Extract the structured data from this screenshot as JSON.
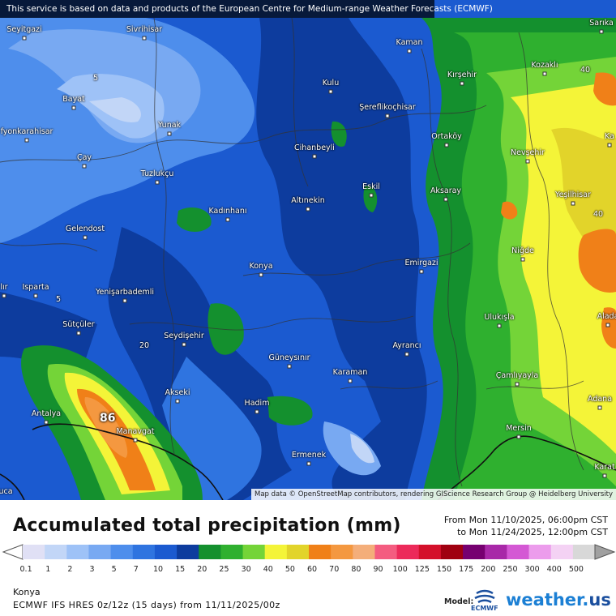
{
  "banner": "This service is based on data and products of the European Centre for Medium-range Weather Forecasts (ECMWF)",
  "attribution": "Map data © OpenStreetMap contributors, rendering GIScience Research Group @ Heidelberg University",
  "max_value_label": "86",
  "contour_labels": [
    "5",
    "5",
    "20",
    "40",
    "40"
  ],
  "cities": [
    {
      "name": "Seyitgazi"
    },
    {
      "name": "Sivrihisar"
    },
    {
      "name": "Kaman"
    },
    {
      "name": "Sarıka"
    },
    {
      "name": "Kozaklı"
    },
    {
      "name": "Kırşehir"
    },
    {
      "name": "Bayat"
    },
    {
      "name": "Kulu"
    },
    {
      "name": "Şereflikoçhisar"
    },
    {
      "name": "fyonkarahisar"
    },
    {
      "name": "Yunak"
    },
    {
      "name": "Ortaköy"
    },
    {
      "name": "Cihanbeyli"
    },
    {
      "name": "Nevşehir"
    },
    {
      "name": "Ka"
    },
    {
      "name": "Çay"
    },
    {
      "name": "Tuzlukçu"
    },
    {
      "name": "Eskil"
    },
    {
      "name": "Aksaray"
    },
    {
      "name": "Yeşilhisar"
    },
    {
      "name": "Altınekin"
    },
    {
      "name": "Kadınhanı"
    },
    {
      "name": "Gelendost"
    },
    {
      "name": "Niğde"
    },
    {
      "name": "Konya"
    },
    {
      "name": "Emirgazi"
    },
    {
      "name": "Isparta"
    },
    {
      "name": "lır"
    },
    {
      "name": "Yenişarbademli"
    },
    {
      "name": "Ulukışla"
    },
    {
      "name": "Alada"
    },
    {
      "name": "Sütçüler"
    },
    {
      "name": "Seydişehir"
    },
    {
      "name": "Ayrancı"
    },
    {
      "name": "Güneysınır"
    },
    {
      "name": "Karaman"
    },
    {
      "name": "Çamlıyayla"
    },
    {
      "name": "Akseki"
    },
    {
      "name": "Hadim"
    },
    {
      "name": "Adana"
    },
    {
      "name": "Antalya"
    },
    {
      "name": "Manavgat"
    },
    {
      "name": "Mersin"
    },
    {
      "name": "Ermenek"
    },
    {
      "name": "Karat"
    },
    {
      "name": "uca"
    }
  ],
  "legend": {
    "title": "Accumulated total precipitation (mm)",
    "period_from": "From Mon 11/10/2025, 06:00pm CST",
    "period_to": "to Mon 11/24/2025, 12:00pm CST",
    "bins": [
      {
        "label": "0.1",
        "color": "#e0e0f5"
      },
      {
        "label": "1",
        "color": "#c2d6f7"
      },
      {
        "label": "2",
        "color": "#9ec2f7"
      },
      {
        "label": "3",
        "color": "#78a9f2"
      },
      {
        "label": "5",
        "color": "#4e8eec"
      },
      {
        "label": "7",
        "color": "#2f74e0"
      },
      {
        "label": "10",
        "color": "#1b5ad0"
      },
      {
        "label": "15",
        "color": "#0d3c9e"
      },
      {
        "label": "20",
        "color": "#14902e"
      },
      {
        "label": "25",
        "color": "#2fb02f"
      },
      {
        "label": "30",
        "color": "#74d438"
      },
      {
        "label": "40",
        "color": "#f4f438"
      },
      {
        "label": "50",
        "color": "#e2d42a"
      },
      {
        "label": "60",
        "color": "#f08018"
      },
      {
        "label": "70",
        "color": "#f49840"
      },
      {
        "label": "80",
        "color": "#f4ae7a"
      },
      {
        "label": "90",
        "color": "#f45c80"
      },
      {
        "label": "100",
        "color": "#ec2a5a"
      },
      {
        "label": "125",
        "color": "#d4102a"
      },
      {
        "label": "150",
        "color": "#a00010"
      },
      {
        "label": "175",
        "color": "#760070"
      },
      {
        "label": "200",
        "color": "#a828a8"
      },
      {
        "label": "250",
        "color": "#d458d4"
      },
      {
        "label": "300",
        "color": "#ec9cec"
      },
      {
        "label": "400",
        "color": "#f4d2f4"
      },
      {
        "label": "500",
        "color": "#d8d8d8"
      }
    ]
  },
  "footer": {
    "location": "Konya",
    "model_line": "ECMWF IFS HRES 0z/12z (15 days) from 11/11/2025/00z",
    "model_label": "Model:",
    "ecmwf": "ECMWF",
    "brand_main": "weather.",
    "brand_tail": "us"
  }
}
